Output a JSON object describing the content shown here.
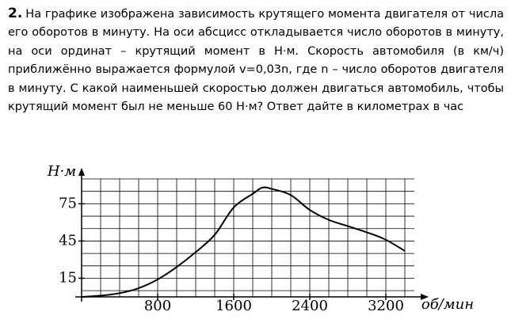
{
  "problem": {
    "number": "2.",
    "text": "На графике изображена зависимость крутящего момента двигателя от числа его оборотов в минуту. На оси абсцисс откладывается число оборотов в минуту, на оси ординат – крутящий момент в Н·м. Скорость автомобиля (в км/ч) приближённо выражается формулой v=0,03n, где n – число оборотов двигателя в минуту. С какой наименьшей скоростью должен двигаться автомобиль, чтобы крутящий момент был не меньше 60 Н·м? Ответ дайте в километрах в час"
  },
  "chart_data": {
    "type": "line",
    "y_label": "Н·м",
    "x_label": "об/мин",
    "x": [
      0,
      200,
      400,
      600,
      800,
      1000,
      1200,
      1400,
      1600,
      1800,
      1900,
      2000,
      2200,
      2400,
      2600,
      2800,
      3000,
      3200,
      3400
    ],
    "values": [
      0,
      1,
      3,
      7,
      14,
      24,
      36,
      50,
      72,
      83,
      88,
      87,
      82,
      70,
      62,
      57,
      52,
      46,
      37
    ],
    "color": "#000000",
    "xlim": [
      0,
      3500
    ],
    "ylim": [
      0,
      95
    ],
    "xticks": [
      800,
      1600,
      2400,
      3200
    ],
    "yticks": [
      15,
      45,
      75
    ],
    "xgrid": [
      200,
      400,
      600,
      800,
      1000,
      1200,
      1400,
      1600,
      1800,
      2000,
      2200,
      2400,
      2600,
      2800,
      3000,
      3200,
      3400
    ],
    "ygrid": [
      5,
      15,
      25,
      35,
      45,
      55,
      65,
      75,
      85,
      95
    ]
  }
}
